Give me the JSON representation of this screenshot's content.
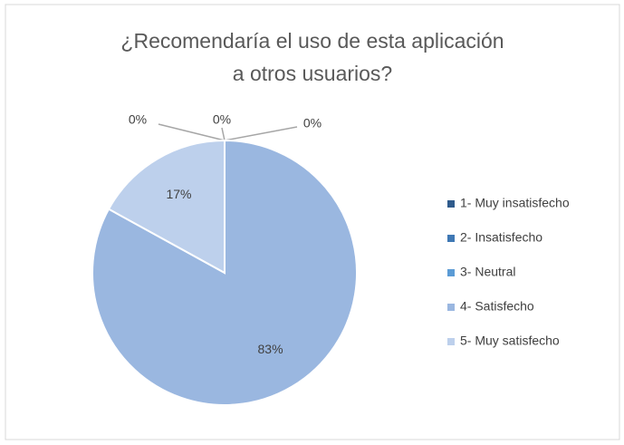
{
  "chart_data": {
    "type": "pie",
    "title": [
      "¿Recomendaría el uso de esta aplicación",
      "a otros usuarios?"
    ],
    "categories": [
      "1- Muy insatisfecho",
      "2- Insatisfecho",
      "3- Neutral",
      "4- Satisfecho",
      "5- Muy satisfecho"
    ],
    "values": [
      0,
      0,
      0,
      83,
      17
    ],
    "value_labels": [
      "0%",
      "0%",
      "0%",
      "83%",
      "17%"
    ],
    "colors": [
      "#2f5b8c",
      "#3f78b4",
      "#5b9bd5",
      "#9ab7e0",
      "#bdd0ec"
    ],
    "legend": "right"
  }
}
